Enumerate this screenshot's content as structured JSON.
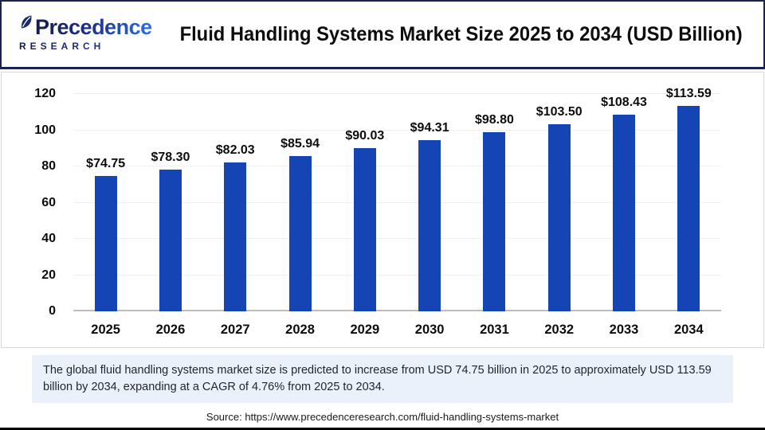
{
  "header": {
    "logo": {
      "line1": "Precedence",
      "line2": "RESEARCH"
    },
    "title": "Fluid Handling Systems Market Size 2025 to 2034 (USD Billion)"
  },
  "chart_data": {
    "type": "bar",
    "title": "Fluid Handling Systems Market Size 2025 to 2034 (USD Billion)",
    "categories": [
      "2025",
      "2026",
      "2027",
      "2028",
      "2029",
      "2030",
      "2031",
      "2032",
      "2033",
      "2034"
    ],
    "values": [
      74.75,
      78.3,
      82.03,
      85.94,
      90.03,
      94.31,
      98.8,
      103.5,
      108.43,
      113.59
    ],
    "bar_labels": [
      "$74.75",
      "$78.30",
      "$82.03",
      "$85.94",
      "$90.03",
      "$94.31",
      "$98.80",
      "$103.50",
      "$108.43",
      "$113.59"
    ],
    "xlabel": "",
    "ylabel": "",
    "ylim": [
      0,
      120
    ],
    "yticks": [
      0,
      20,
      40,
      60,
      80,
      100,
      120
    ],
    "grid": true,
    "legend": false,
    "bar_color": "#1544b4"
  },
  "summary": {
    "text": "The global fluid handling systems market size is predicted to increase from USD 74.75 billion in 2025 to approximately USD 113.59 billion by 2034, expanding at a CAGR of 4.76% from 2025 to 2034."
  },
  "source": {
    "text": "Source: https://www.precedenceresearch.com/fluid-handling-systems-market"
  },
  "colors": {
    "bar": "#1544b4",
    "summary_bg": "#eaf1fb",
    "header_border": "#1b2150",
    "chart_border": "#d9d9d9",
    "gridline": "#f0f0f0",
    "axis_line": "#bdbdbd",
    "logo_navy": "#141b4f",
    "logo_blue": "#2e6fe0"
  }
}
